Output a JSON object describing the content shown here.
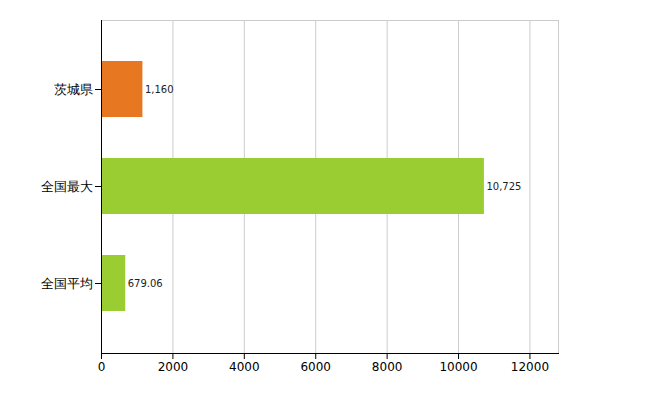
{
  "chart_data": {
    "type": "bar",
    "orientation": "horizontal",
    "categories": [
      "茨城県",
      "全国最大",
      "全国平均"
    ],
    "values": [
      1160,
      10725,
      679.06
    ],
    "value_labels": [
      "1,160",
      "10,725",
      "679.06"
    ],
    "colors": [
      "#e87722",
      "#9acd32",
      "#9acd32"
    ],
    "xlim": [
      0,
      12800
    ],
    "xticks": [
      0,
      2000,
      4000,
      6000,
      8000,
      10000,
      12000
    ],
    "grid": true,
    "data_labels": true
  }
}
